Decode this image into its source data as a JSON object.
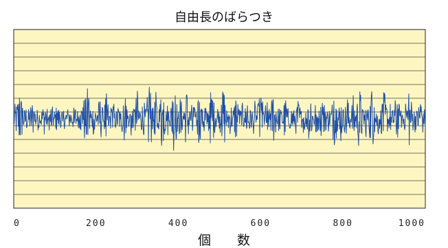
{
  "chart_data": {
    "type": "line",
    "title": "自由長のばらつき",
    "xlabel": "個　　数",
    "ylabel": "",
    "xlim": [
      0,
      1000
    ],
    "ylim": [
      -6,
      6
    ],
    "x_ticks": [
      "0",
      "200",
      "400",
      "600",
      "800",
      "1000"
    ],
    "grid": true,
    "grid_lines": 13,
    "background_color": "#fdf6c1",
    "line_color": "#1f4fa8",
    "grid_color": "#444444",
    "series": [
      {
        "name": "",
        "n_points": 1000,
        "x": [
          0,
          15,
          30,
          45,
          60,
          75,
          90,
          105,
          120,
          135,
          150,
          165,
          180,
          195,
          210,
          225,
          240,
          255,
          270,
          285,
          300,
          315,
          330,
          345,
          360,
          375,
          390,
          405,
          420,
          435,
          450,
          465,
          480,
          495,
          510,
          525,
          540,
          555,
          570,
          585,
          600,
          615,
          630,
          645,
          660,
          675,
          690,
          705,
          720,
          735,
          750,
          765,
          780,
          795,
          810,
          825,
          840,
          855,
          870,
          885,
          900,
          915,
          930,
          945,
          960,
          975,
          990,
          999
        ],
        "values": [
          0.2,
          1.5,
          -0.4,
          0.8,
          -0.3,
          0.6,
          -0.5,
          0.4,
          -0.2,
          0.3,
          -0.4,
          0.5,
          1.8,
          -0.9,
          1.2,
          -1.3,
          0.9,
          -0.6,
          1.4,
          -1.0,
          1.6,
          -1.1,
          2.3,
          -1.5,
          1.9,
          -0.8,
          2.1,
          -1.2,
          1.7,
          -0.9,
          1.5,
          -1.3,
          1.8,
          -0.7,
          1.9,
          -1.1,
          1.3,
          -0.6,
          1.2,
          -0.8,
          1.5,
          -1.0,
          1.4,
          -0.5,
          1.2,
          -0.7,
          1.0,
          -0.6,
          1.3,
          -1.0,
          1.1,
          -0.4,
          1.5,
          -1.3,
          1.6,
          -1.2,
          2.0,
          -0.9,
          1.8,
          -0.8,
          1.5,
          -0.6,
          1.2,
          -0.5,
          1.7,
          -0.4,
          1.2,
          -0.3
        ]
      }
    ]
  }
}
